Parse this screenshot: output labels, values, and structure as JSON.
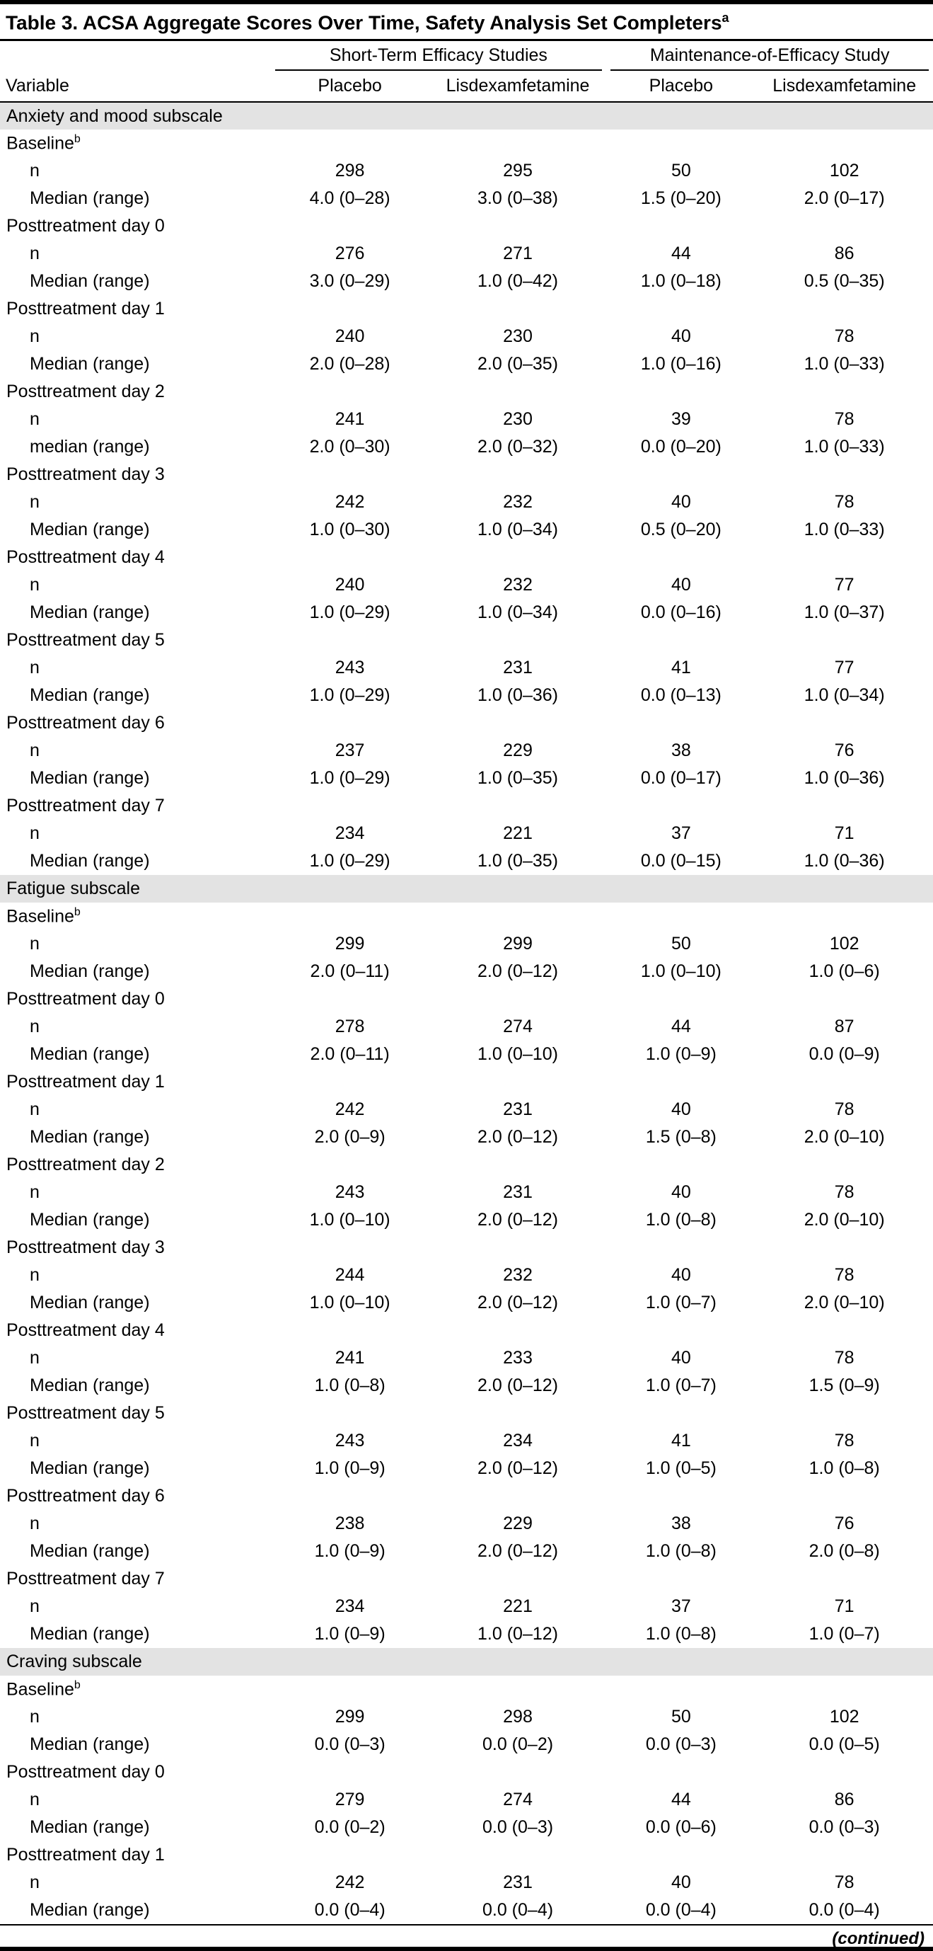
{
  "title": {
    "text": "Table 3. ACSA Aggregate Scores Over Time, Safety Analysis Set Completers",
    "superscript": "a"
  },
  "header": {
    "variable_label": "Variable",
    "groups": [
      {
        "label": "Short-Term Efficacy Studies",
        "columns": [
          "Placebo",
          "Lisdexamfetamine"
        ]
      },
      {
        "label": "Maintenance-of-Efficacy Study",
        "columns": [
          "Placebo",
          "Lisdexamfetamine"
        ]
      }
    ]
  },
  "sections": [
    {
      "name": "Anxiety and mood subscale",
      "blocks": [
        {
          "label": "Baseline",
          "superscript": "b",
          "rows": [
            {
              "label": "n",
              "values": [
                "298",
                "295",
                "50",
                "102"
              ]
            },
            {
              "label": "Median (range)",
              "values": [
                "4.0 (0–28)",
                "3.0 (0–38)",
                "1.5 (0–20)",
                "2.0 (0–17)"
              ]
            }
          ]
        },
        {
          "label": "Posttreatment day 0",
          "rows": [
            {
              "label": "n",
              "values": [
                "276",
                "271",
                "44",
                "86"
              ]
            },
            {
              "label": "Median (range)",
              "values": [
                "3.0 (0–29)",
                "1.0 (0–42)",
                "1.0 (0–18)",
                "0.5 (0–35)"
              ]
            }
          ]
        },
        {
          "label": "Posttreatment day 1",
          "rows": [
            {
              "label": "n",
              "values": [
                "240",
                "230",
                "40",
                "78"
              ]
            },
            {
              "label": "Median (range)",
              "values": [
                "2.0 (0–28)",
                "2.0 (0–35)",
                "1.0 (0–16)",
                "1.0 (0–33)"
              ]
            }
          ]
        },
        {
          "label": "Posttreatment day 2",
          "rows": [
            {
              "label": "n",
              "values": [
                "241",
                "230",
                "39",
                "78"
              ]
            },
            {
              "label": "median (range)",
              "values": [
                "2.0 (0–30)",
                "2.0 (0–32)",
                "0.0 (0–20)",
                "1.0 (0–33)"
              ]
            }
          ]
        },
        {
          "label": "Posttreatment day 3",
          "rows": [
            {
              "label": "n",
              "values": [
                "242",
                "232",
                "40",
                "78"
              ]
            },
            {
              "label": "Median (range)",
              "values": [
                "1.0 (0–30)",
                "1.0 (0–34)",
                "0.5 (0–20)",
                "1.0 (0–33)"
              ]
            }
          ]
        },
        {
          "label": "Posttreatment day 4",
          "rows": [
            {
              "label": "n",
              "values": [
                "240",
                "232",
                "40",
                "77"
              ]
            },
            {
              "label": "Median (range)",
              "values": [
                "1.0 (0–29)",
                "1.0 (0–34)",
                "0.0 (0–16)",
                "1.0 (0–37)"
              ]
            }
          ]
        },
        {
          "label": "Posttreatment day 5",
          "rows": [
            {
              "label": "n",
              "values": [
                "243",
                "231",
                "41",
                "77"
              ]
            },
            {
              "label": "Median (range)",
              "values": [
                "1.0 (0–29)",
                "1.0 (0–36)",
                "0.0 (0–13)",
                "1.0 (0–34)"
              ]
            }
          ]
        },
        {
          "label": "Posttreatment day 6",
          "rows": [
            {
              "label": "n",
              "values": [
                "237",
                "229",
                "38",
                "76"
              ]
            },
            {
              "label": "Median (range)",
              "values": [
                "1.0 (0–29)",
                "1.0 (0–35)",
                "0.0 (0–17)",
                "1.0 (0–36)"
              ]
            }
          ]
        },
        {
          "label": "Posttreatment day 7",
          "rows": [
            {
              "label": "n",
              "values": [
                "234",
                "221",
                "37",
                "71"
              ]
            },
            {
              "label": "Median (range)",
              "values": [
                "1.0 (0–29)",
                "1.0 (0–35)",
                "0.0 (0–15)",
                "1.0 (0–36)"
              ]
            }
          ]
        }
      ]
    },
    {
      "name": "Fatigue subscale",
      "blocks": [
        {
          "label": "Baseline",
          "superscript": "b",
          "rows": [
            {
              "label": "n",
              "values": [
                "299",
                "299",
                "50",
                "102"
              ]
            },
            {
              "label": "Median (range)",
              "values": [
                "2.0 (0–11)",
                "2.0 (0–12)",
                "1.0 (0–10)",
                "1.0 (0–6)"
              ]
            }
          ]
        },
        {
          "label": "Posttreatment day 0",
          "rows": [
            {
              "label": "n",
              "values": [
                "278",
                "274",
                "44",
                "87"
              ]
            },
            {
              "label": "Median (range)",
              "values": [
                "2.0 (0–11)",
                "1.0 (0–10)",
                "1.0 (0–9)",
                "0.0 (0–9)"
              ]
            }
          ]
        },
        {
          "label": "Posttreatment day 1",
          "rows": [
            {
              "label": "n",
              "values": [
                "242",
                "231",
                "40",
                "78"
              ]
            },
            {
              "label": "Median (range)",
              "values": [
                "2.0 (0–9)",
                "2.0 (0–12)",
                "1.5 (0–8)",
                "2.0 (0–10)"
              ]
            }
          ]
        },
        {
          "label": "Posttreatment day 2",
          "rows": [
            {
              "label": "n",
              "values": [
                "243",
                "231",
                "40",
                "78"
              ]
            },
            {
              "label": "Median (range)",
              "values": [
                "1.0 (0–10)",
                "2.0 (0–12)",
                "1.0 (0–8)",
                "2.0 (0–10)"
              ]
            }
          ]
        },
        {
          "label": "Posttreatment day 3",
          "rows": [
            {
              "label": "n",
              "values": [
                "244",
                "232",
                "40",
                "78"
              ]
            },
            {
              "label": "Median (range)",
              "values": [
                "1.0 (0–10)",
                "2.0 (0–12)",
                "1.0 (0–7)",
                "2.0 (0–10)"
              ]
            }
          ]
        },
        {
          "label": "Posttreatment day 4",
          "rows": [
            {
              "label": "n",
              "values": [
                "241",
                "233",
                "40",
                "78"
              ]
            },
            {
              "label": "Median (range)",
              "values": [
                "1.0 (0–8)",
                "2.0 (0–12)",
                "1.0 (0–7)",
                "1.5 (0–9)"
              ]
            }
          ]
        },
        {
          "label": "Posttreatment day 5",
          "rows": [
            {
              "label": "n",
              "values": [
                "243",
                "234",
                "41",
                "78"
              ]
            },
            {
              "label": "Median (range)",
              "values": [
                "1.0 (0–9)",
                "2.0 (0–12)",
                "1.0 (0–5)",
                "1.0 (0–8)"
              ]
            }
          ]
        },
        {
          "label": "Posttreatment day 6",
          "rows": [
            {
              "label": "n",
              "values": [
                "238",
                "229",
                "38",
                "76"
              ]
            },
            {
              "label": "Median (range)",
              "values": [
                "1.0 (0–9)",
                "2.0 (0–12)",
                "1.0 (0–8)",
                "2.0 (0–8)"
              ]
            }
          ]
        },
        {
          "label": "Posttreatment day 7",
          "rows": [
            {
              "label": "n",
              "values": [
                "234",
                "221",
                "37",
                "71"
              ]
            },
            {
              "label": "Median (range)",
              "values": [
                "1.0 (0–9)",
                "1.0 (0–12)",
                "1.0 (0–8)",
                "1.0 (0–7)"
              ]
            }
          ]
        }
      ]
    },
    {
      "name": "Craving subscale",
      "blocks": [
        {
          "label": "Baseline",
          "superscript": "b",
          "rows": [
            {
              "label": "n",
              "values": [
                "299",
                "298",
                "50",
                "102"
              ]
            },
            {
              "label": "Median (range)",
              "values": [
                "0.0 (0–3)",
                "0.0 (0–2)",
                "0.0 (0–3)",
                "0.0 (0–5)"
              ]
            }
          ]
        },
        {
          "label": "Posttreatment day 0",
          "rows": [
            {
              "label": "n",
              "values": [
                "279",
                "274",
                "44",
                "86"
              ]
            },
            {
              "label": "Median (range)",
              "values": [
                "0.0 (0–2)",
                "0.0 (0–3)",
                "0.0 (0–6)",
                "0.0 (0–3)"
              ]
            }
          ]
        },
        {
          "label": "Posttreatment day 1",
          "rows": [
            {
              "label": "n",
              "values": [
                "242",
                "231",
                "40",
                "78"
              ]
            },
            {
              "label": "Median (range)",
              "values": [
                "0.0 (0–4)",
                "0.0 (0–4)",
                "0.0 (0–4)",
                "0.0 (0–4)"
              ]
            }
          ]
        }
      ]
    }
  ],
  "footer": {
    "continued": "(continued)"
  }
}
